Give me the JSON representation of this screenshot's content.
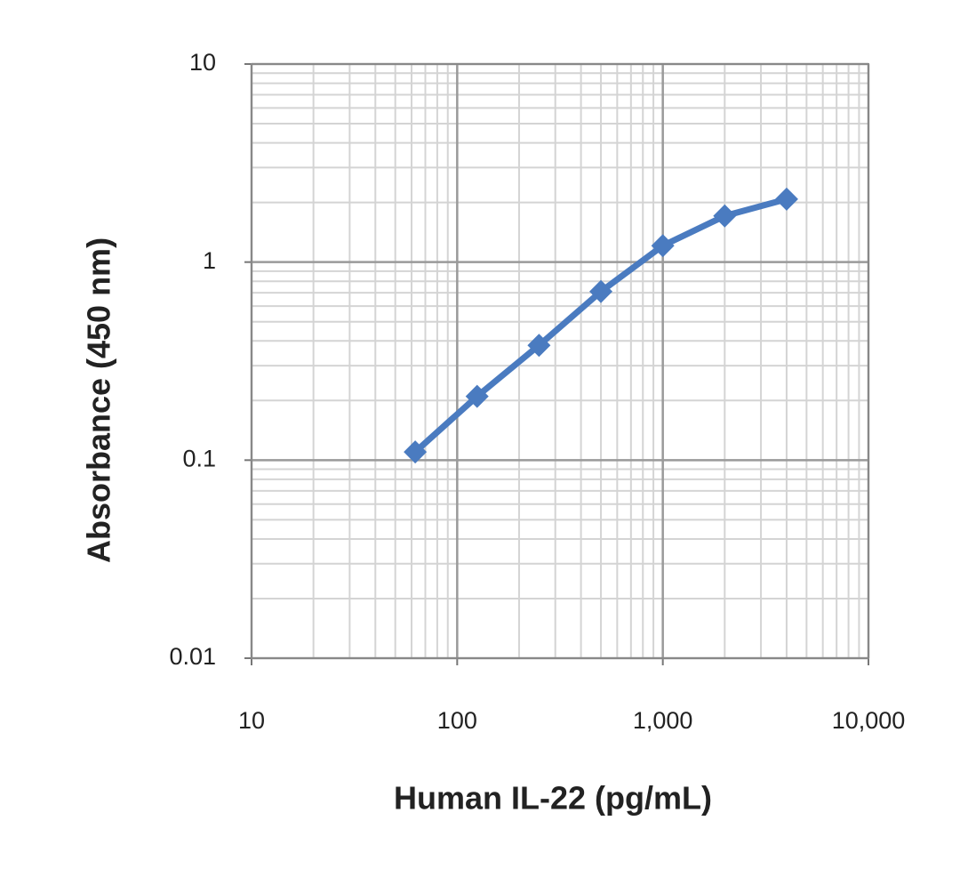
{
  "chart_data": {
    "type": "line",
    "x_label": "Human IL-22 (pg/mL)",
    "y_label": "Absorbance (450 nm)",
    "x": [
      62.5,
      125,
      250,
      500,
      1000,
      2000,
      4000
    ],
    "series": [
      {
        "color": "#4a7bc0",
        "values": [
          0.11,
          0.21,
          0.38,
          0.71,
          1.21,
          1.71,
          2.08
        ]
      }
    ],
    "xlim": [
      10,
      10000
    ],
    "ylim": [
      0.01,
      10
    ],
    "xticks": [
      10,
      100,
      {
        "value": 1000,
        "label": "1,000"
      },
      {
        "value": 10000,
        "label": "10,000"
      }
    ],
    "yticks": [
      0.01,
      0.1,
      1,
      10
    ],
    "xscale": "log",
    "yscale": "log",
    "grid": true,
    "minor_grid": true,
    "marker": "diamond"
  }
}
